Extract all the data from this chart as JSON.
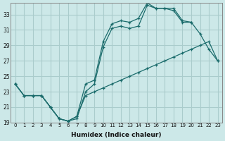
{
  "title": "",
  "xlabel": "Humidex (Indice chaleur)",
  "ylabel": "",
  "background_color": "#cce8e8",
  "grid_color": "#aacccc",
  "line_color": "#1a6b6b",
  "xlim": [
    -0.5,
    23.5
  ],
  "ylim": [
    19,
    34.5
  ],
  "xticks": [
    0,
    1,
    2,
    3,
    4,
    5,
    6,
    7,
    8,
    9,
    10,
    11,
    12,
    13,
    14,
    15,
    16,
    17,
    18,
    19,
    20,
    21,
    22,
    23
  ],
  "yticks": [
    19,
    21,
    23,
    25,
    27,
    29,
    31,
    33
  ],
  "series": [
    {
      "x": [
        0,
        1,
        2,
        3,
        4,
        5,
        6,
        7,
        8,
        9,
        10,
        11,
        12,
        13,
        14,
        15,
        16,
        17,
        18,
        19,
        20,
        21,
        22,
        23
      ],
      "y": [
        24,
        22.5,
        22.5,
        22.5,
        21,
        19.5,
        19.2,
        19.5,
        23,
        24,
        28.8,
        31.2,
        31.5,
        31.2,
        31.5,
        34.2,
        33.8,
        33.8,
        33.5,
        32,
        32,
        30.5,
        28.5,
        27
      ]
    },
    {
      "x": [
        0,
        1,
        2,
        3,
        4,
        5,
        6,
        7,
        8,
        9,
        10,
        11,
        12,
        13,
        14,
        15,
        16,
        17,
        18,
        19,
        20
      ],
      "y": [
        24,
        22.5,
        22.5,
        22.5,
        21,
        19.5,
        19.2,
        19.8,
        24,
        24.5,
        29.5,
        31.8,
        32.2,
        32,
        32.5,
        34.5,
        33.8,
        33.8,
        33.8,
        32.2,
        32
      ]
    },
    {
      "x": [
        0,
        1,
        2,
        3,
        4,
        5,
        6,
        7,
        8,
        9,
        10,
        11,
        12,
        13,
        14,
        15,
        16,
        17,
        18,
        19,
        20,
        21,
        22,
        23
      ],
      "y": [
        24,
        22.5,
        22.5,
        22.5,
        21,
        19.5,
        19.2,
        19.8,
        22.5,
        23,
        23.5,
        24,
        24.5,
        25,
        25.5,
        26,
        26.5,
        27,
        27.5,
        28,
        28.5,
        29,
        29.5,
        27
      ]
    }
  ]
}
